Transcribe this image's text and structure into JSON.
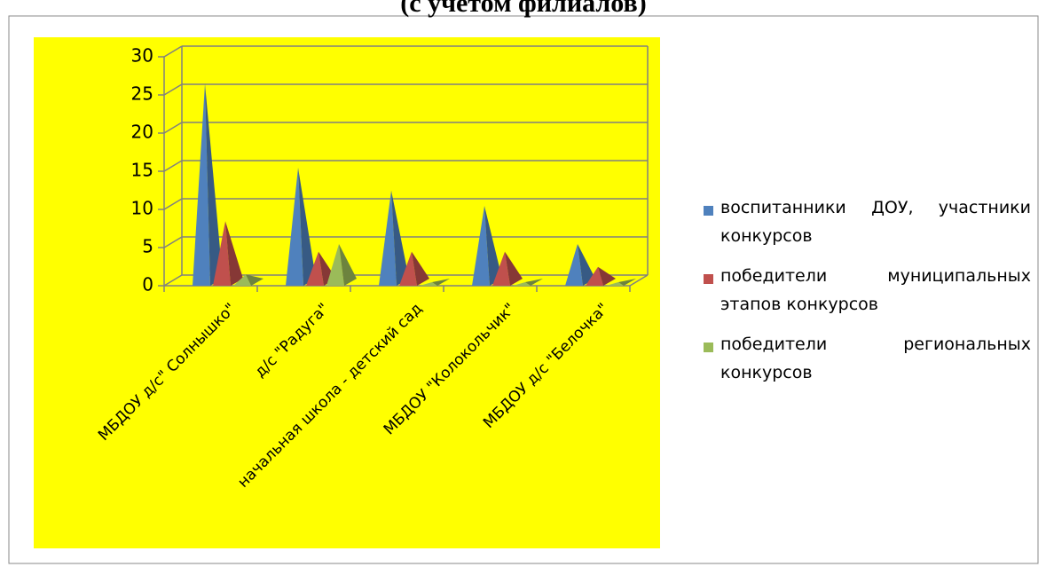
{
  "chart_data": {
    "type": "pyramid3d",
    "title": "(с учетом  филиалов)",
    "categories": [
      "МБДОУ  д/с\" Солнышко\"",
      "д/с \"Радуга\"",
      "начальная школа - детский сад",
      "МБДОУ \"Колокольчик\"",
      "МБДОУ  д/с \"Белочка\""
    ],
    "series": [
      {
        "name": "воспитанники   ДОУ, участники конкурсов",
        "color": "#4f81bd",
        "values": [
          26,
          15,
          12,
          10,
          5
        ]
      },
      {
        "name": "победители муниципальных этапов   конкурсов",
        "color": "#c0504d",
        "values": [
          8,
          4,
          4,
          4,
          2
        ]
      },
      {
        "name": " победители    региональных конкурсов",
        "color": "#9bbb59",
        "values": [
          1,
          5,
          0,
          0,
          0
        ]
      }
    ],
    "ylim": [
      0,
      30
    ],
    "yticks": [
      0,
      5,
      10,
      15,
      20,
      25,
      30
    ],
    "grid": true,
    "background": "#ffff00"
  }
}
